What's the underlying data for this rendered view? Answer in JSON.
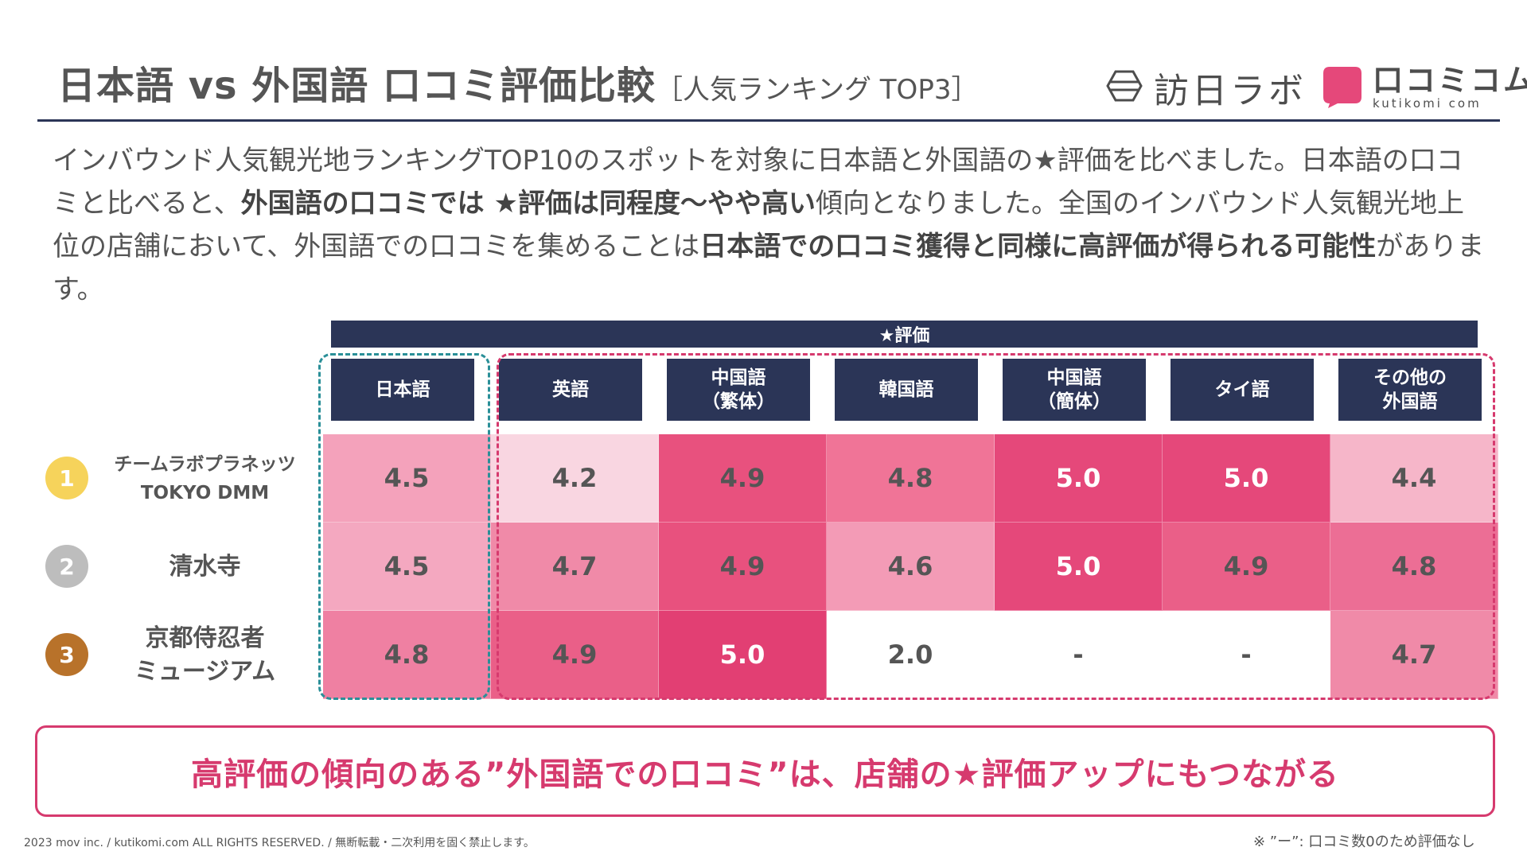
{
  "header": {
    "title": "日本語 vs 外国語 口コミ評価比較",
    "subtitle": "［人気ランキング TOP3］"
  },
  "logos": {
    "honichi_text": "訪日ラボ",
    "kutikomi_jp": "口コミコム",
    "kutikomi_en": "kutikomi com"
  },
  "intro": {
    "p1": "インバウンド人気観光地ランキングTOP10のスポットを対象に日本語と外国語の★評価を比べました。日本語の口コミと比べると、",
    "b1": "外国語の口コミでは ★評価は同程度〜やや高い",
    "p2": "傾向となりました。全国のインバウンド人気観光地上位の店舗において、外国語での口コミを集めることは",
    "b2": "日本語での口コミ獲得と同様に高評価が得られる可能性",
    "p3": "があります。"
  },
  "table": {
    "star_header": "★評価",
    "columns": [
      "日本語",
      "英語",
      "中国語\n（繁体）",
      "韓国語",
      "中国語\n（簡体）",
      "タイ語",
      "その他の\n外国語"
    ],
    "rows": [
      {
        "rank": "1",
        "rank_color": "#f6d35b",
        "label": "チームラボプラネッツ\nTOKYO DMM",
        "values": [
          "4.5",
          "4.2",
          "4.9",
          "4.8",
          "5.0",
          "5.0",
          "4.4"
        ]
      },
      {
        "rank": "2",
        "rank_color": "#bdbdbd",
        "label": "清水寺",
        "values": [
          "4.5",
          "4.7",
          "4.9",
          "4.6",
          "5.0",
          "4.9",
          "4.8"
        ]
      },
      {
        "rank": "3",
        "rank_color": "#b8722a",
        "label": "京都侍忍者\nミュージアム",
        "values": [
          "4.8",
          "4.9",
          "5.0",
          "2.0",
          "-",
          "-",
          "4.7"
        ]
      }
    ],
    "cell_colors": [
      [
        "#f4a2bb",
        "#f9d6e1",
        "#e8517e",
        "#f07497",
        "#e5487a",
        "#e5487a",
        "#f6b6c9"
      ],
      [
        "#f4a8c0",
        "#f08aa8",
        "#e8517e",
        "#f39bb6",
        "#e5487a",
        "#ea5f88",
        "#ec6e95"
      ],
      [
        "#ef80a2",
        "#ea5f88",
        "#e23f73",
        "#ffffff",
        "#ffffff",
        "#ffffff",
        "#f08aa8"
      ]
    ],
    "text_colors": [
      [
        "#555555",
        "#555555",
        "#555555",
        "#555555",
        "#ffffff",
        "#ffffff",
        "#555555"
      ],
      [
        "#555555",
        "#555555",
        "#555555",
        "#555555",
        "#ffffff",
        "#555555",
        "#555555"
      ],
      [
        "#555555",
        "#555555",
        "#ffffff",
        "#555555",
        "#555555",
        "#555555",
        "#555555"
      ]
    ]
  },
  "callout": "高評価の傾向のある”外国語での口コミ”は、店舗の★評価アップにもつながる",
  "footer": {
    "copyright": "2023 mov inc. / kutikomi.com ALL RIGHTS RESERVED. / 無断転載・二次利用を固く禁止します。",
    "footnote": "※ ”ー”: 口コミ数0のため評価なし"
  },
  "colors": {
    "navy": "#2b3557",
    "accent_pink": "#d63a6e",
    "teal": "#2a8f98"
  }
}
